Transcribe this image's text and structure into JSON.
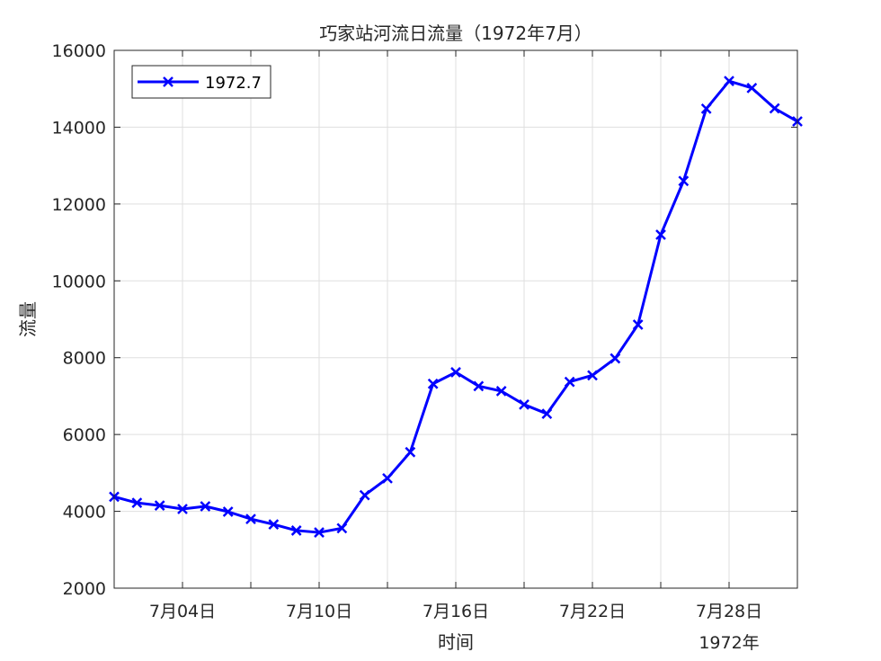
{
  "chart_data": {
    "type": "line",
    "title": "巧家站河流日流量（1972年7月）",
    "xlabel": "时间",
    "ylabel": "流量",
    "x_secondary_label": "1972年",
    "xlim": [
      1,
      31
    ],
    "ylim": [
      2000,
      16000
    ],
    "x_tick_positions": [
      4,
      10,
      16,
      22,
      28
    ],
    "x_ticks": [
      "7月04日",
      "7月10日",
      "7月16日",
      "7月22日",
      "7月28日"
    ],
    "y_ticks": [
      "2000",
      "4000",
      "6000",
      "8000",
      "10000",
      "12000",
      "14000",
      "16000"
    ],
    "y_tick_values": [
      2000,
      4000,
      6000,
      8000,
      10000,
      12000,
      14000,
      16000
    ],
    "grid": true,
    "legend_position": "top-left",
    "series": [
      {
        "name": "1972.7",
        "color": "#0000ff",
        "marker": "x",
        "x": [
          1,
          2,
          3,
          4,
          5,
          6,
          7,
          8,
          9,
          10,
          11,
          12,
          13,
          14,
          15,
          16,
          17,
          18,
          19,
          20,
          21,
          22,
          23,
          24,
          25,
          26,
          27,
          28,
          29,
          30,
          31
        ],
        "values": [
          4380,
          4220,
          4150,
          4060,
          4130,
          3990,
          3800,
          3660,
          3500,
          3450,
          3560,
          4420,
          4860,
          5540,
          7320,
          7620,
          7260,
          7130,
          6780,
          6540,
          7370,
          7540,
          7980,
          8860,
          11200,
          12600,
          14480,
          15200,
          15020,
          14490,
          14150
        ]
      }
    ]
  }
}
